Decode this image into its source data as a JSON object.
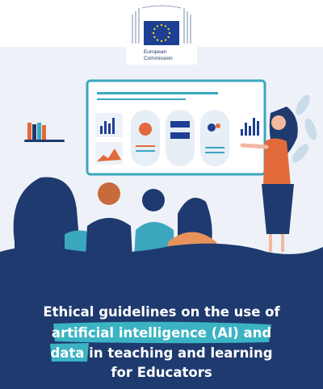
{
  "logo": {
    "line1": "European",
    "line2": "Commission"
  },
  "title": {
    "line1": "Ethical guidelines on the use of",
    "line2": "artificial intelligence (AI) and",
    "line3_highlight": "data",
    "line3_rest": " in teaching and learning",
    "line4": "for Educators"
  }
}
